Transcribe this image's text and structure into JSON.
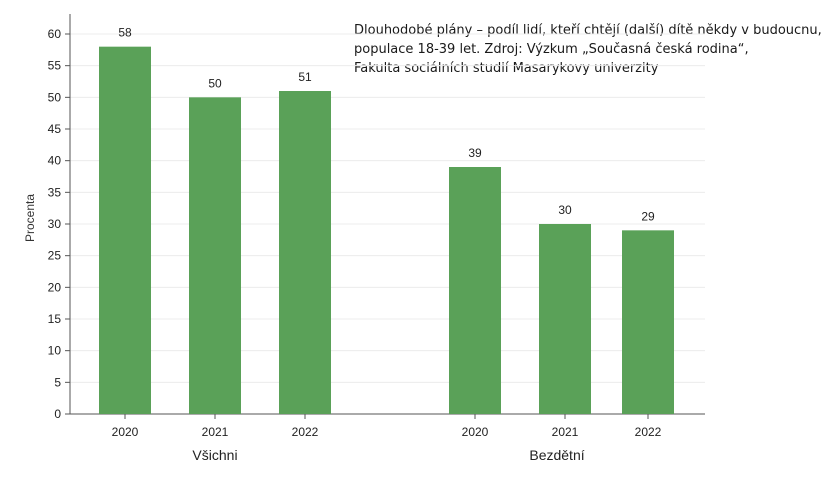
{
  "chart_data": {
    "type": "bar",
    "title": [
      "Dlouhodobé plány – podíl lidí, kteří chtějí (další) dítě někdy v budoucnu,",
      "populace 18-39 let. Zdroj: Výzkum „Současná česká rodina“,",
      "Fakulta sociálních studií Masarykovy univerzity"
    ],
    "ylabel": "Procenta",
    "ylim": [
      0,
      60
    ],
    "yticks": [
      0,
      5,
      10,
      15,
      20,
      25,
      30,
      35,
      40,
      45,
      50,
      55,
      60
    ],
    "grid": true,
    "legend": "none",
    "bar_color": "#5aa158",
    "groups": [
      {
        "label": "Všichni",
        "categories": [
          "2020",
          "2021",
          "2022"
        ],
        "values": [
          58,
          50,
          51
        ]
      },
      {
        "label": "Bezdětní",
        "categories": [
          "2020",
          "2021",
          "2022"
        ],
        "values": [
          39,
          30,
          29
        ]
      }
    ]
  }
}
